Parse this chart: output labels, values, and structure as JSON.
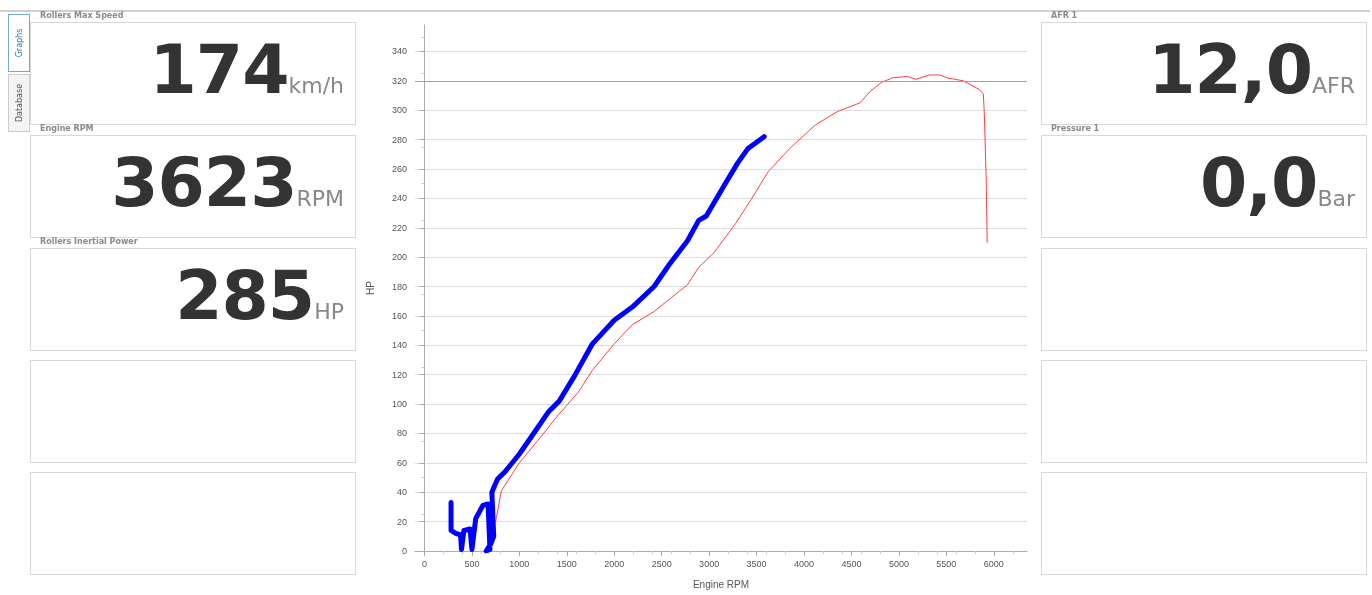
{
  "chart_data": [
    {
      "type": "other",
      "annotations": [
        "Graphs",
        "Database"
      ]
    },
    {
      "type": "other",
      "annotations": [
        "Rollers Max Speed",
        "174",
        "km/h",
        "Engine RPM",
        "3623",
        "RPM",
        "Rollers Inertial Power",
        "285",
        "HP"
      ]
    },
    {
      "type": "line",
      "xlabel": "Engine RPM",
      "ylabel": "HP",
      "xlim": [
        -100,
        6350
      ],
      "ylim": [
        0,
        358
      ],
      "xticks": [
        0,
        500,
        1000,
        1500,
        2000,
        2500,
        3000,
        3500,
        4000,
        4500,
        5000,
        5500,
        6000
      ],
      "yticks": [
        0,
        20,
        40,
        60,
        80,
        100,
        120,
        140,
        160,
        180,
        200,
        220,
        240,
        260,
        280,
        300,
        320,
        340
      ],
      "grid": "y",
      "marker": "none",
      "line_style": "solid",
      "ref_lines": [
        {
          "axis": "y",
          "value": 320,
          "color": "#a0a0a0"
        }
      ],
      "series": [
        {
          "color": "#0000ff",
          "x": [
            280,
            280,
            330,
            380,
            390,
            415,
            480,
            500,
            540,
            615,
            670,
            690,
            650,
            700,
            730,
            710,
            770,
            850,
            1000,
            1150,
            1310,
            1420,
            1580,
            1770,
            2000,
            2190,
            2420,
            2580,
            2770,
            2890,
            2970,
            3160,
            3300,
            3410,
            3580
          ],
          "values": [
            33,
            14,
            12,
            11,
            1,
            14,
            15,
            1,
            22,
            31,
            32,
            1,
            0,
            5,
            10,
            40,
            49,
            54,
            66,
            80,
            95,
            102,
            119,
            141,
            157,
            166,
            180,
            195,
            211,
            225,
            228,
            249,
            264,
            274,
            282
          ]
        },
        {
          "color": "#ff4040",
          "x": [
            750,
            810,
            1000,
            1230,
            1390,
            1620,
            1770,
            2000,
            2190,
            2420,
            2650,
            2770,
            2890,
            3050,
            3280,
            3450,
            3620,
            3850,
            4120,
            4350,
            4590,
            4700,
            4820,
            4930,
            5090,
            5180,
            5320,
            5430,
            5510,
            5680,
            5850,
            5890,
            5900,
            5920,
            5930
          ],
          "values": [
            20,
            41,
            60,
            78,
            91,
            108,
            123,
            141,
            154,
            163,
            175,
            181,
            193,
            203,
            223,
            240,
            258,
            274,
            290,
            299,
            305,
            313,
            319,
            322,
            323,
            321,
            324,
            324,
            322,
            320,
            314,
            311,
            298,
            253,
            210
          ]
        }
      ]
    },
    {
      "type": "other",
      "annotations": [
        "AFR 1",
        "12,0",
        "AFR",
        "Pressure 1",
        "0,0",
        "Bar"
      ]
    }
  ]
}
